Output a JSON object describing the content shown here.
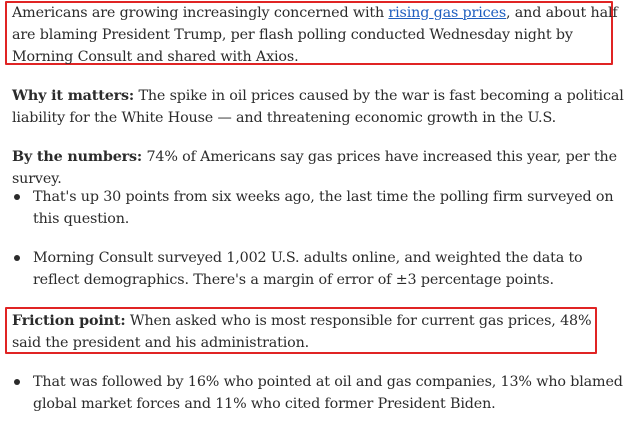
{
  "intro": {
    "text_before_link": "Americans are growing increasingly concerned with ",
    "link_text": "rising gas prices",
    "text_after_link": ", and about half are blaming President Trump, per flash polling conducted Wednesday night by Morning Consult and shared with Axios."
  },
  "why_it_matters": {
    "lead": "Why it matters:",
    "text": " The spike in oil prices caused by the war is fast becoming a political liability for the White House — and threatening economic growth in the U.S."
  },
  "by_the_numbers": {
    "lead": "By the numbers:",
    "text": " 74% of Americans say gas prices have increased this year, per the survey."
  },
  "bullets_numbers": [
    "That's up 30 points from six weeks ago, the last time the polling firm surveyed on this question.",
    "Morning Consult surveyed 1,002 U.S. adults online, and weighted the data to reflect demographics. There's a margin of error of ±3 percentage points."
  ],
  "friction_point": {
    "lead": "Friction point:",
    "text": " When asked who is most responsible for current gas prices, 48% said the president and his administration."
  },
  "bullets_friction": [
    "That was followed by 16% who pointed at oil and gas companies, 13% who blamed global market forces and 11% who cited former President Biden."
  ],
  "colors": {
    "highlight_border": "#e02424",
    "link": "#1f5fbf",
    "text": "#2b2b2b"
  }
}
